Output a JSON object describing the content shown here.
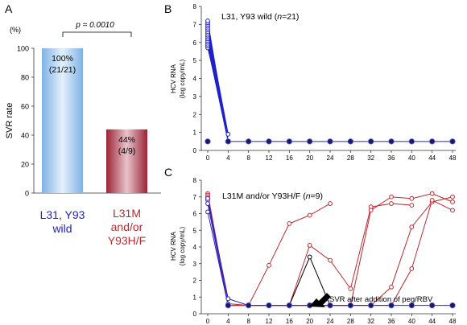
{
  "chart_data": [
    {
      "panel": "A",
      "type": "bar",
      "unit_label": "(%)",
      "ylabel": "SVR rate",
      "ylim": [
        0,
        100
      ],
      "yticks": [
        "0",
        "20",
        "40",
        "60",
        "80",
        "100"
      ],
      "categories": [
        [
          "L31, Y93",
          "wild"
        ],
        [
          "L31M",
          "and/or",
          "Y93H/F"
        ]
      ],
      "values": [
        100,
        44
      ],
      "bar_labels": [
        [
          "100%",
          "(21/21)"
        ],
        [
          "44%",
          "(4/9)"
        ]
      ],
      "category_colors": [
        "#2020c8",
        "#c0282d"
      ],
      "significance": "p = 0.0010"
    },
    {
      "panel": "B",
      "type": "line",
      "title": "L31, Y93 wild (n=21)",
      "title_parts": [
        "L31, Y93 wild (",
        "n",
        "=21)"
      ],
      "ylabel": [
        "HCV RNA",
        "(log copy/mL)"
      ],
      "ylim": [
        0,
        8
      ],
      "yticks": [
        "0",
        "1",
        "2",
        "3",
        "4",
        "5",
        "6",
        "7",
        "8"
      ],
      "xticks": [
        "0",
        "4",
        "8",
        "12",
        "16",
        "20",
        "24",
        "28",
        "32",
        "36",
        "40",
        "44",
        "48"
      ],
      "baseline_weeks": [
        0,
        4,
        8,
        12,
        16,
        20,
        24,
        28,
        32,
        36,
        40,
        44,
        48
      ],
      "baseline_value": 0.5,
      "week0_values": [
        5.7,
        5.8,
        5.9,
        6.0,
        6.1,
        6.2,
        6.3,
        6.4,
        6.5,
        6.6,
        6.7,
        6.8,
        6.9,
        7.0,
        7.1,
        7.2
      ],
      "week4_values": [
        0.5,
        0.9
      ],
      "color": "#2020c8"
    },
    {
      "panel": "C",
      "type": "line",
      "title": "L31M and/or Y93H/F (n=9)",
      "title_parts": [
        "L31M and/or Y93H/F (",
        "n",
        "=9)"
      ],
      "ylabel": [
        "HCV RNA",
        "(log copy/mL)"
      ],
      "ylim": [
        0,
        8
      ],
      "yticks": [
        "0",
        "1",
        "2",
        "3",
        "4",
        "5",
        "6",
        "7",
        "8"
      ],
      "xticks": [
        "0",
        "4",
        "8",
        "12",
        "16",
        "20",
        "24",
        "28",
        "32",
        "36",
        "40",
        "44",
        "48"
      ],
      "baseline_value": 0.5,
      "svr_series": [
        {
          "x": [
            0,
            4,
            8,
            12,
            16,
            20,
            24,
            28,
            32,
            36,
            40,
            44,
            48
          ],
          "y": [
            6.9,
            0.9,
            0.5,
            0.5,
            0.5,
            0.5,
            0.5,
            0.5,
            0.5,
            0.5,
            0.5,
            0.5,
            0.5
          ]
        },
        {
          "x": [
            0,
            4
          ],
          "y": [
            6.6,
            0.5
          ]
        },
        {
          "x": [
            0,
            4
          ],
          "y": [
            6.1,
            0.5
          ]
        }
      ],
      "relapse_series": [
        {
          "x": [
            0,
            4,
            8,
            12,
            16,
            20,
            24
          ],
          "y": [
            7.2,
            0.6,
            0.5,
            2.9,
            5.4,
            5.9,
            6.6
          ]
        },
        {
          "x": [
            0,
            4,
            8,
            12,
            16,
            20,
            24,
            28,
            32,
            36,
            40
          ],
          "y": [
            7.1,
            0.5,
            0.5,
            0.5,
            0.5,
            4.1,
            3.2,
            1.5,
            6.4,
            6.6,
            6.5
          ]
        },
        {
          "x": [
            0,
            4,
            8,
            12,
            16,
            20,
            24,
            28,
            32,
            36,
            40,
            44,
            48
          ],
          "y": [
            7.0,
            0.5,
            0.5,
            0.5,
            0.5,
            0.5,
            0.5,
            0.5,
            6.2,
            7.0,
            6.9,
            7.2,
            6.7
          ]
        },
        {
          "x": [
            0,
            4,
            8,
            12,
            16,
            20,
            24,
            28,
            32,
            36,
            40,
            44,
            48
          ],
          "y": [
            6.9,
            0.5,
            0.5,
            0.5,
            0.5,
            0.5,
            0.5,
            0.5,
            0.5,
            1.6,
            5.2,
            6.7,
            7.0
          ]
        },
        {
          "x": [
            0,
            4,
            8,
            12,
            16,
            20,
            24,
            28,
            32,
            36,
            40,
            44,
            48
          ],
          "y": [
            6.8,
            0.5,
            0.5,
            0.5,
            0.5,
            0.5,
            0.5,
            0.5,
            0.5,
            0.5,
            2.7,
            6.8,
            6.2
          ]
        }
      ],
      "blip_series": {
        "x": [
          16,
          20,
          24
        ],
        "y": [
          0.5,
          3.4,
          0.5
        ]
      },
      "annotation": "SVR after addition of peg/RBV",
      "colors": {
        "svr": "#2020c8",
        "relapse": "#c0282d",
        "blip": "#000000"
      }
    }
  ],
  "panel_letters": [
    "A",
    "B",
    "C"
  ]
}
